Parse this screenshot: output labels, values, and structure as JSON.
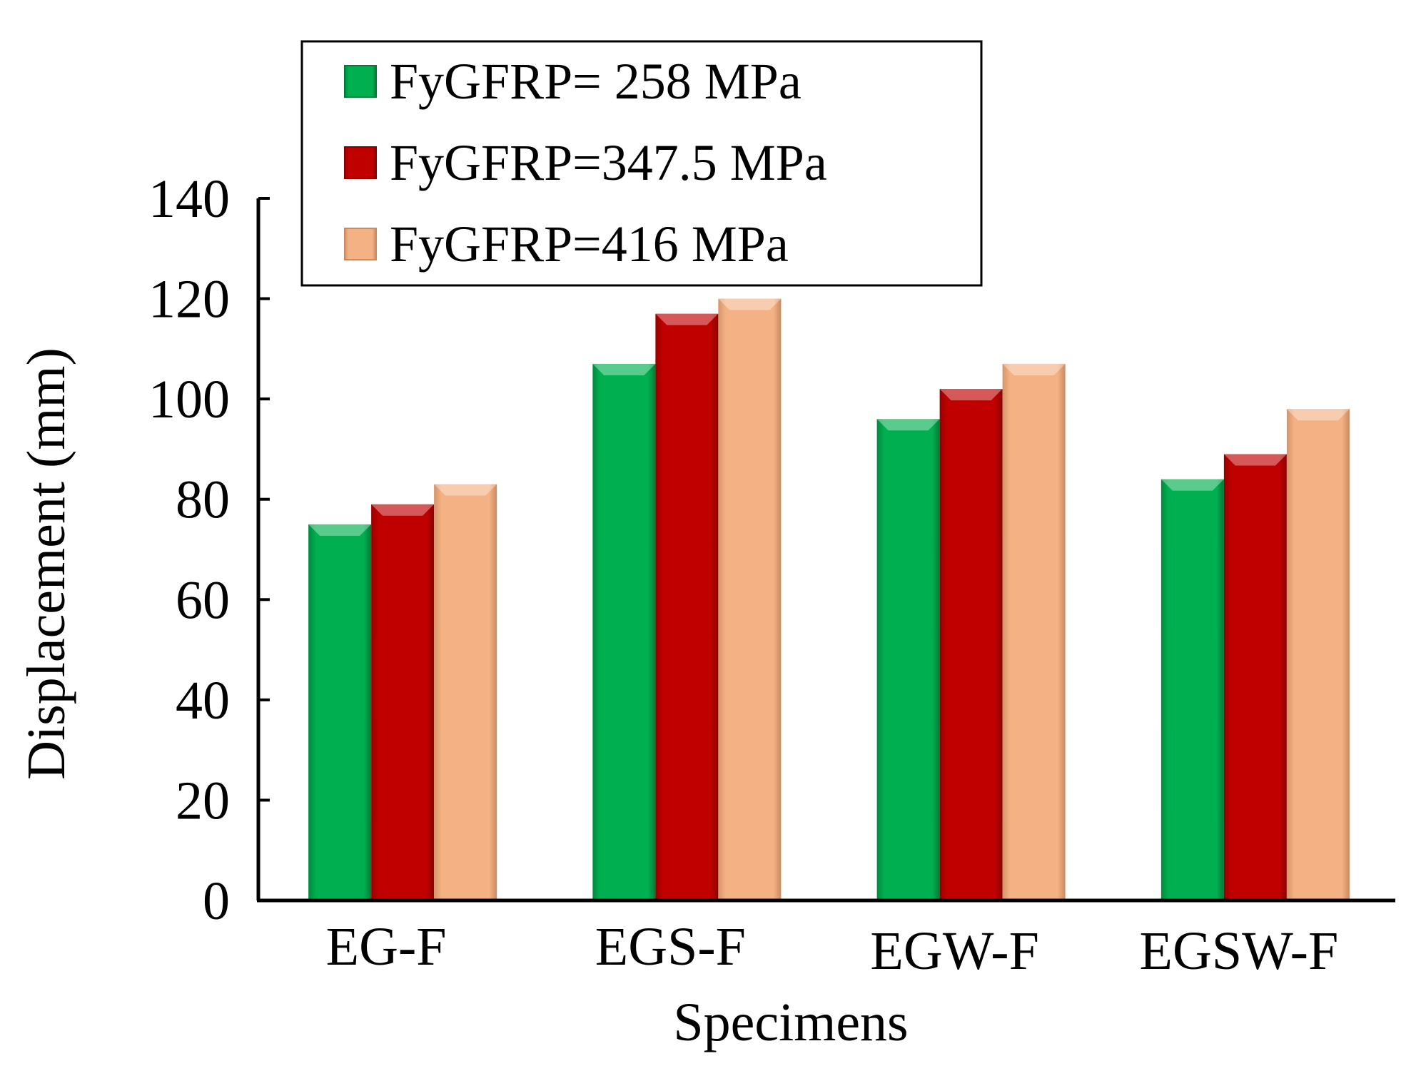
{
  "chart_data": {
    "type": "bar",
    "title": "",
    "xlabel": "Specimens",
    "ylabel": "Displacement (mm)",
    "ylim": [
      0,
      140
    ],
    "yticks": [
      0,
      20,
      40,
      60,
      80,
      100,
      120,
      140
    ],
    "categories": [
      "EG-F",
      "EGS-F",
      "EGW-F",
      "EGSW-F"
    ],
    "series": [
      {
        "name": "FyGFRP= 258 MPa",
        "color": "#00b050",
        "values": [
          75,
          107,
          96,
          84
        ]
      },
      {
        "name": "FyGFRP=347.5 MPa",
        "color": "#c00000",
        "values": [
          79,
          117,
          102,
          89
        ]
      },
      {
        "name": "FyGFRP=416 MPa",
        "color": "#f4b183",
        "values": [
          83,
          120,
          107,
          98
        ]
      }
    ],
    "legend_position": "top-left",
    "grid": false
  }
}
